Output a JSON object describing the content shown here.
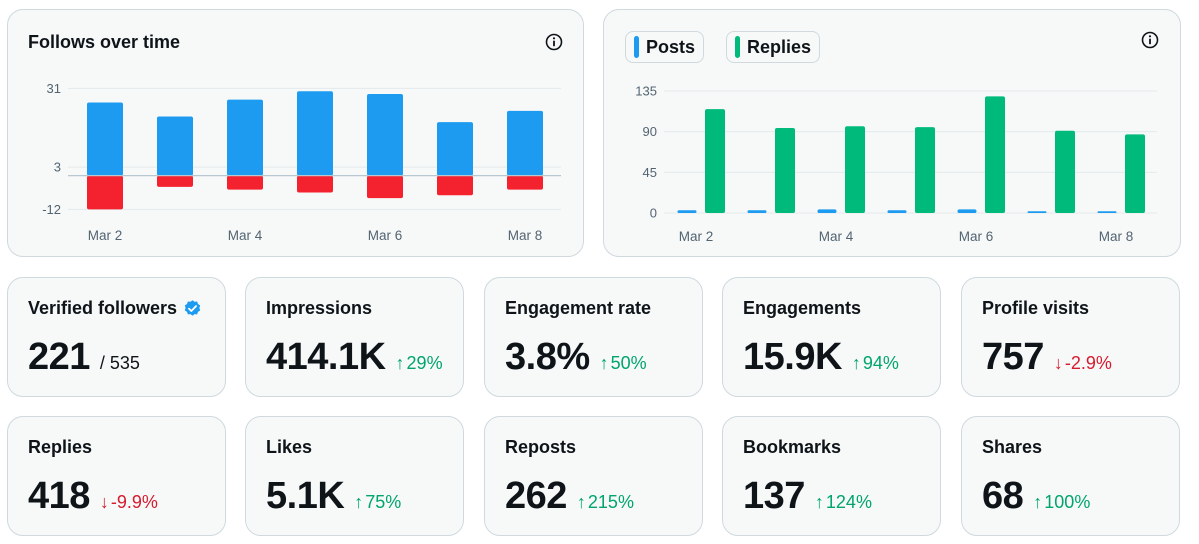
{
  "colors": {
    "blue": "#1d9bf0",
    "red": "#f4212e",
    "green": "#00ba7c",
    "up": "#00a56c",
    "down": "#d71a2e",
    "grid": "#e4e9ec",
    "baseline": "#b9c7d1",
    "tick": "#536471"
  },
  "follows_chart": {
    "title": "Follows over time",
    "info_icon": "info-icon"
  },
  "posts_chart": {
    "legend": [
      {
        "label": "Posts",
        "color": "#1d9bf0"
      },
      {
        "label": "Replies",
        "color": "#00ba7c"
      }
    ],
    "info_icon": "info-icon"
  },
  "chart_data": [
    {
      "type": "bar",
      "title": "Follows over time",
      "x_tick_labels": [
        "Mar 2",
        "Mar 4",
        "Mar 6",
        "Mar 8"
      ],
      "categories": [
        "Mar 2",
        "Mar 3",
        "Mar 4",
        "Mar 5",
        "Mar 6",
        "Mar 7",
        "Mar 8"
      ],
      "y_ticks": [
        31,
        3,
        -12
      ],
      "ylim": [
        -14,
        31.5
      ],
      "grid": true,
      "series": [
        {
          "values": [
            26,
            21,
            27,
            30,
            29,
            19,
            23
          ],
          "color": "#1d9bf0"
        },
        {
          "values": [
            -12,
            -4,
            -5,
            -6,
            -8,
            -7,
            -5
          ],
          "color": "#f4212e"
        }
      ]
    },
    {
      "type": "bar",
      "x_tick_labels": [
        "Mar 2",
        "Mar 4",
        "Mar 6",
        "Mar 8"
      ],
      "categories": [
        "Mar 2",
        "Mar 3",
        "Mar 4",
        "Mar 5",
        "Mar 6",
        "Mar 7",
        "Mar 8"
      ],
      "y_ticks": [
        135,
        90,
        45,
        0
      ],
      "ylim": [
        0,
        135
      ],
      "grid": true,
      "legend": "top-left",
      "series": [
        {
          "name": "Posts",
          "values": [
            3,
            3,
            4,
            3,
            4,
            2,
            2
          ],
          "color": "#1d9bf0"
        },
        {
          "name": "Replies",
          "values": [
            115,
            94,
            96,
            95,
            129,
            91,
            87
          ],
          "color": "#00ba7c"
        }
      ]
    }
  ],
  "metrics": [
    {
      "label": "Verified followers",
      "value": "221",
      "total": "/ 535",
      "verified_icon": true
    },
    {
      "label": "Impressions",
      "value": "414.1K",
      "arrow": "↑",
      "change": "29%",
      "direction": "up"
    },
    {
      "label": "Engagement rate",
      "value": "3.8%",
      "arrow": "↑",
      "change": "50%",
      "direction": "up"
    },
    {
      "label": "Engagements",
      "value": "15.9K",
      "arrow": "↑",
      "change": "94%",
      "direction": "up"
    },
    {
      "label": "Profile visits",
      "value": "757",
      "arrow": "↓",
      "change": "-2.9%",
      "direction": "down"
    },
    {
      "label": "Replies",
      "value": "418",
      "arrow": "↓",
      "change": "-9.9%",
      "direction": "down"
    },
    {
      "label": "Likes",
      "value": "5.1K",
      "arrow": "↑",
      "change": "75%",
      "direction": "up"
    },
    {
      "label": "Reposts",
      "value": "262",
      "arrow": "↑",
      "change": "215%",
      "direction": "up"
    },
    {
      "label": "Bookmarks",
      "value": "137",
      "arrow": "↑",
      "change": "124%",
      "direction": "up"
    },
    {
      "label": "Shares",
      "value": "68",
      "arrow": "↑",
      "change": "100%",
      "direction": "up"
    }
  ]
}
